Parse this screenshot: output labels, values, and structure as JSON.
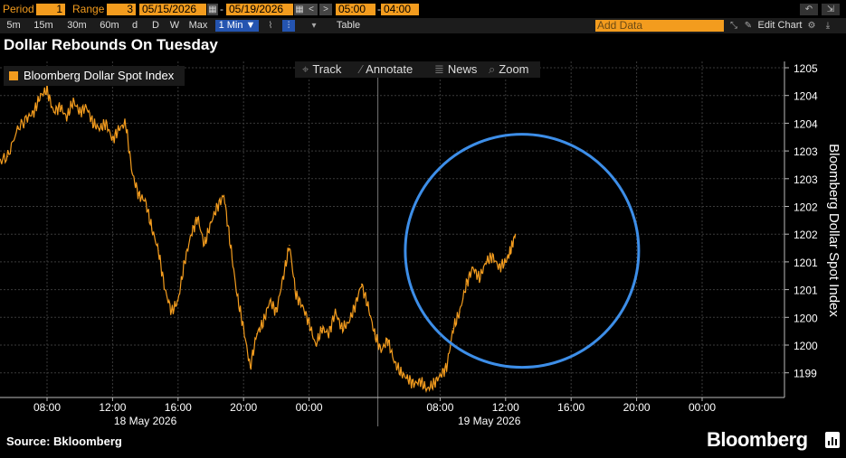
{
  "toolbar": {
    "period_label": "Period",
    "period_value": "1",
    "range_label": "Range",
    "range_value": "3",
    "date_from": "05/15/2026",
    "date_to": "05/19/2026",
    "time_from": "05:00",
    "time_to": "04:00",
    "intervals": [
      "5m",
      "15m",
      "30m",
      "60m",
      "d",
      "D",
      "W",
      "Max"
    ],
    "selected_interval": "1 Min ▼",
    "table_label": "Table",
    "add_data_placeholder": "Add Data",
    "edit_chart_label": "Edit Chart"
  },
  "overlay": {
    "track": "Track",
    "annotate": "Annotate",
    "news": "News",
    "zoom": "Zoom"
  },
  "footer": {
    "source": "Source: Bkloomberg",
    "brand": "Bloomberg"
  },
  "colors": {
    "series": "#f39c1e",
    "highlight_circle": "#3d8ee8",
    "background": "#000000",
    "gridline": "#3a3a3a"
  },
  "chart_data": {
    "type": "line",
    "title": "Dollar Rebounds On Tuesday",
    "ylabel": "Bloomberg Dollar Spot Index",
    "legend_position": "top-left",
    "grid": true,
    "ylim": [
      1198.75,
      1205.2
    ],
    "y_ticks": [
      "1205",
      "1204",
      "1204",
      "1203",
      "1203",
      "1202",
      "1202",
      "1201",
      "1201",
      "1200",
      "1200",
      "1199"
    ],
    "y_tick_values": [
      1205,
      1204.5,
      1204,
      1203.5,
      1203,
      1202.5,
      1202,
      1201.5,
      1201,
      1200.5,
      1200,
      1199.5
    ],
    "x_tick_labels": [
      "08:00",
      "12:00",
      "16:00",
      "20:00",
      "00:00",
      "08:00",
      "12:00",
      "16:00",
      "20:00",
      "00:00"
    ],
    "x_tick_hours": [
      8,
      12,
      16,
      20,
      24,
      32,
      36,
      40,
      44,
      48
    ],
    "x_range_hours": [
      5,
      52
    ],
    "x_unit": "hours since 18 May 2026 00:00",
    "date_labels": [
      "18 May 2026",
      "19 May 2026"
    ],
    "date_label_hours": [
      14,
      35
    ],
    "day_separator_hours": [
      4.2,
      28.2
    ],
    "annotation": "highlight circle around 19 May 2026 rebound",
    "highlight_center": [
      37,
      1201.7
    ],
    "series": [
      {
        "name": "Bloomberg Dollar Spot Index",
        "x": [
          5.0,
          5.6,
          6.2,
          6.8,
          7.2,
          7.6,
          8.0,
          8.4,
          8.8,
          9.2,
          9.6,
          10.0,
          10.4,
          10.8,
          11.2,
          11.6,
          12.0,
          12.4,
          12.8,
          13.2,
          13.6,
          14.0,
          14.4,
          14.8,
          15.2,
          15.6,
          16.0,
          16.4,
          16.8,
          17.2,
          17.6,
          18.0,
          18.4,
          18.8,
          19.2,
          19.6,
          20.0,
          20.4,
          20.8,
          21.2,
          21.6,
          22.0,
          22.4,
          22.8,
          23.2,
          23.6,
          24.0,
          24.4,
          24.8,
          25.2,
          25.6,
          26.0,
          26.4,
          26.8,
          27.2,
          27.6,
          28.0,
          28.4,
          28.8,
          29.2,
          29.6,
          30.0,
          30.4,
          30.8,
          31.2,
          31.6,
          32.0,
          32.4,
          32.8,
          33.2,
          33.6,
          34.0,
          34.4,
          34.8,
          35.2,
          35.6,
          36.0,
          36.3,
          36.6
        ],
        "values": [
          1203.3,
          1203.4,
          1203.9,
          1204.1,
          1204.2,
          1204.5,
          1204.6,
          1204.2,
          1204.3,
          1204.1,
          1204.4,
          1204.2,
          1204.3,
          1204.0,
          1203.9,
          1204.0,
          1203.7,
          1203.9,
          1204.0,
          1203.1,
          1202.7,
          1202.6,
          1202.1,
          1201.7,
          1201.0,
          1200.6,
          1200.8,
          1201.5,
          1202.0,
          1202.3,
          1201.8,
          1202.2,
          1202.5,
          1202.7,
          1201.8,
          1200.9,
          1200.3,
          1199.6,
          1200.2,
          1200.4,
          1200.8,
          1200.6,
          1201.2,
          1201.8,
          1200.9,
          1200.7,
          1200.4,
          1200.0,
          1200.3,
          1200.2,
          1200.6,
          1200.3,
          1200.4,
          1200.7,
          1201.1,
          1200.7,
          1200.2,
          1199.9,
          1200.1,
          1199.7,
          1199.5,
          1199.4,
          1199.3,
          1199.35,
          1199.2,
          1199.3,
          1199.45,
          1199.6,
          1200.3,
          1200.6,
          1201.1,
          1201.4,
          1201.2,
          1201.5,
          1201.6,
          1201.4,
          1201.5,
          1201.7,
          1202.0
        ]
      }
    ]
  }
}
